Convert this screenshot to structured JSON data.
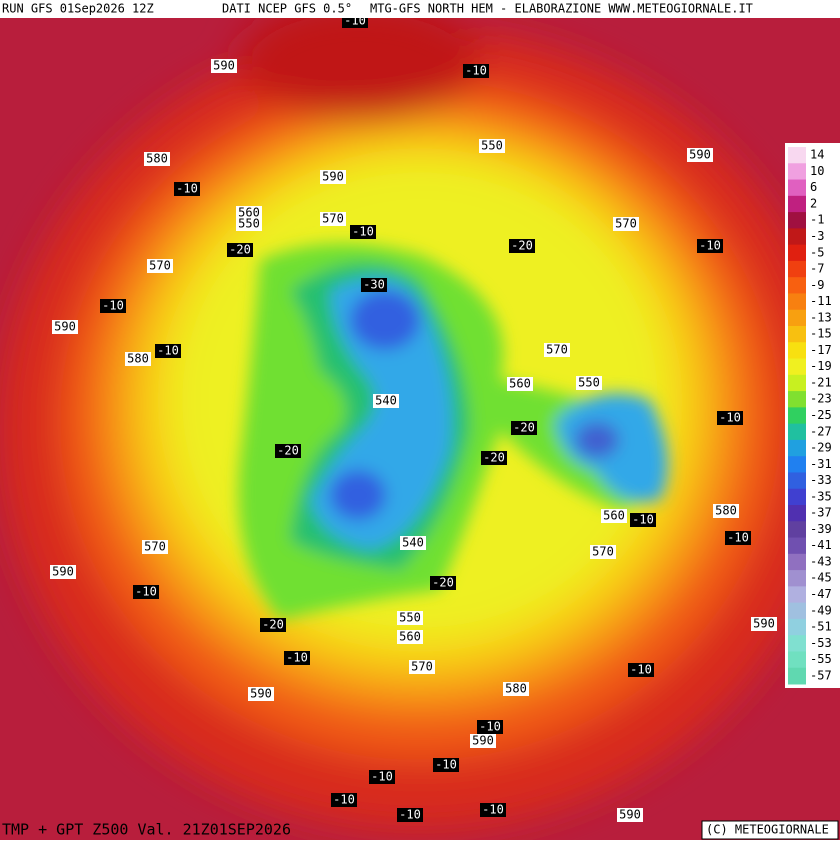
{
  "header": {
    "run": "RUN GFS 01Sep2026 12Z",
    "source": "DATI NCEP GFS 0.5°",
    "product": "MTG-GFS NORTH HEM - ELABORAZIONE WWW.METEOGIORNALE.IT"
  },
  "footer": {
    "title": "TMP + GPT Z500 Val. 21Z01SEP2026",
    "credit": "(C) METEOGIORNALE"
  },
  "legend": {
    "labels": [
      14,
      10,
      6,
      2,
      -1,
      -3,
      -5,
      -7,
      -9,
      -11,
      -13,
      -15,
      -17,
      -19,
      -21,
      -23,
      -25,
      -27,
      -29,
      -31,
      -33,
      -35,
      -37,
      -39,
      -41,
      -43,
      -45,
      -47,
      -49,
      -51,
      -53,
      -55,
      -57
    ],
    "colors": [
      "#f8d8f0",
      "#f0a0e0",
      "#e060c0",
      "#c02080",
      "#a01040",
      "#c01818",
      "#e02010",
      "#f04010",
      "#f86010",
      "#f88010",
      "#f8a010",
      "#f8c010",
      "#f8e010",
      "#f0f020",
      "#c8f020",
      "#80e030",
      "#30d060",
      "#20c0a0",
      "#20a0e0",
      "#2080f0",
      "#3060e0",
      "#4040d0",
      "#5030b0",
      "#6040a0",
      "#7050b0",
      "#9070c0",
      "#a090d0",
      "#b0b0e0",
      "#a0c0e0",
      "#90d0e0",
      "#80e0d0",
      "#70e0c0",
      "#60d8b0"
    ]
  },
  "gpt_labels": [
    590,
    550,
    580,
    590,
    560,
    550,
    570,
    570,
    570,
    590,
    580,
    570,
    560,
    550,
    540,
    540,
    560,
    580,
    570,
    570,
    590,
    550,
    560,
    570,
    580,
    590,
    590,
    590,
    590,
    590
  ],
  "tmp_labels": [
    -10,
    -10,
    -10,
    -10,
    -10,
    -10,
    -10,
    -10,
    -10,
    -10,
    -10,
    -10,
    -10,
    -10,
    -10,
    -10,
    -10,
    -10,
    -10,
    -20,
    -20,
    -20,
    -20,
    -20,
    -20,
    -20,
    -30
  ]
}
